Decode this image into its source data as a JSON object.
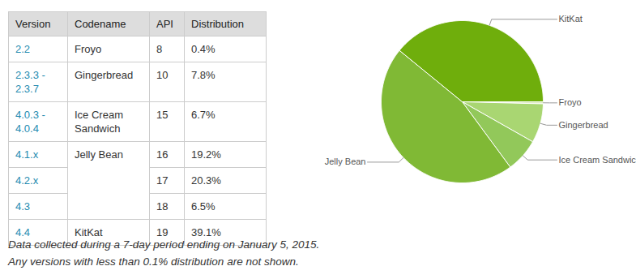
{
  "table": {
    "header": [
      "Version",
      "Codename",
      "API",
      "Distribution"
    ],
    "rows": [
      [
        "2.2",
        "Froyo",
        "8",
        "0.4%"
      ],
      [
        "2.3.3 - 2.3.7",
        "Gingerbread",
        "10",
        "7.8%"
      ],
      [
        "4.0.3 - 4.0.4",
        "Ice Cream Sandwich",
        "15",
        "6.7%"
      ],
      [
        "4.1.x",
        "Jelly Bean",
        "16",
        "19.2%"
      ],
      [
        "4.2.x",
        null,
        "17",
        "20.3%"
      ],
      [
        "4.3",
        null,
        "18",
        "6.5%"
      ],
      [
        "4.4",
        "KitKat",
        "19",
        "39.1%"
      ]
    ]
  },
  "notes": [
    "Data collected during a 7-day period ending on January 5, 2015.",
    "Any versions with less than 0.1% distribution are not shown."
  ],
  "chart_data": {
    "type": "pie",
    "categories": [
      "Froyo",
      "Gingerbread",
      "Ice Cream Sandwich",
      "Jelly Bean",
      "KitKat"
    ],
    "values": [
      0.4,
      7.8,
      6.7,
      46.0,
      39.1
    ],
    "colors": [
      "#dcebc0",
      "#a9d672",
      "#92c85a",
      "#80b935",
      "#6fae0c"
    ]
  }
}
